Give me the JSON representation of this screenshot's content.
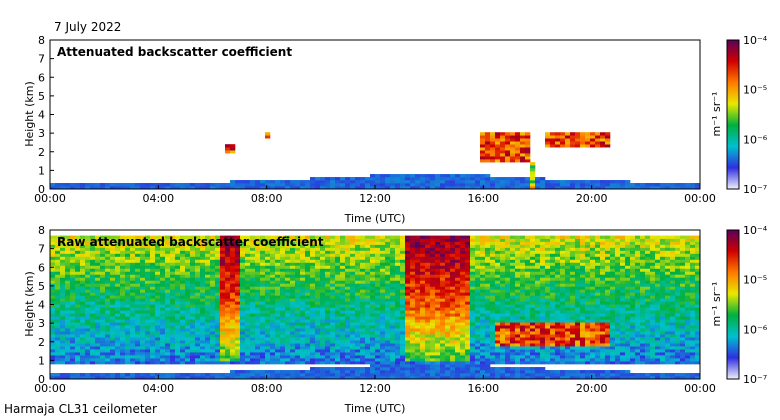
{
  "header": {
    "date": "7 July 2022"
  },
  "footer": {
    "instrument": "Harmaja CL31 ceilometer"
  },
  "colors": {
    "colormap": [
      "#f0f0fb",
      "#2f2fe0",
      "#00c0d0",
      "#00b040",
      "#e8e800",
      "#ff7a00",
      "#d00000",
      "#5a005a"
    ]
  },
  "chart_data": [
    {
      "type": "heatmap",
      "title": "Attenuated backscatter coefficient",
      "xlabel": "Time (UTC)",
      "ylabel": "Height (km)",
      "xlim": [
        "00:00",
        "00:00"
      ],
      "ylim": [
        0,
        8
      ],
      "x_ticks": [
        "00:00",
        "04:00",
        "08:00",
        "12:00",
        "16:00",
        "20:00",
        "00:00"
      ],
      "y_ticks": [
        "0",
        "1",
        "2",
        "3",
        "4",
        "5",
        "6",
        "7",
        "8"
      ],
      "colorbar": {
        "label": "m⁻¹ sr⁻¹",
        "scale": "log",
        "range": [
          1e-07,
          0.0001
        ],
        "ticks": [
          "10⁻⁷",
          "10⁻⁶",
          "10⁻⁵",
          "10⁻⁴"
        ]
      },
      "features": [
        {
          "name": "boundary layer",
          "time_hours": [
            0,
            24
          ],
          "height_km": [
            0,
            0.8
          ]
        },
        {
          "name": "cloud layer",
          "time_hours": [
            6.5,
            6.9
          ],
          "height_km": [
            1.9,
            2.4
          ]
        },
        {
          "name": "cloud layer",
          "time_hours": [
            7.9,
            8.1
          ],
          "height_km": [
            2.8,
            3.0
          ]
        },
        {
          "name": "cloud layer",
          "time_hours": [
            15.9,
            17.8
          ],
          "height_km": [
            1.4,
            3.0
          ]
        },
        {
          "name": "cloud layer",
          "time_hours": [
            18.2,
            20.6
          ],
          "height_km": [
            2.2,
            3.0
          ]
        },
        {
          "name": "precipitation",
          "time_hours": [
            16.0,
            16.1
          ],
          "height_km": [
            0,
            1.0
          ]
        },
        {
          "name": "precipitation",
          "time_hours": [
            17.8,
            17.95
          ],
          "height_km": [
            0,
            1.5
          ]
        }
      ]
    },
    {
      "type": "heatmap",
      "title": "Raw attenuated backscatter coefficient",
      "xlabel": "Time (UTC)",
      "ylabel": "Height (km)",
      "xlim": [
        "00:00",
        "00:00"
      ],
      "ylim": [
        0,
        8
      ],
      "x_ticks": [
        "00:00",
        "04:00",
        "08:00",
        "12:00",
        "16:00",
        "20:00",
        "00:00"
      ],
      "y_ticks": [
        "0",
        "1",
        "2",
        "3",
        "4",
        "5",
        "6",
        "7",
        "8"
      ],
      "colorbar": {
        "label": "m⁻¹ sr⁻¹",
        "scale": "log",
        "range": [
          1e-07,
          0.0001
        ],
        "ticks": [
          "10⁻⁷",
          "10⁻⁶",
          "10⁻⁵",
          "10⁻⁴"
        ]
      },
      "features": [
        {
          "name": "noise",
          "time_hours": [
            0,
            24
          ],
          "height_km": [
            1.0,
            7.7
          ]
        },
        {
          "name": "boundary layer",
          "time_hours": [
            0,
            24
          ],
          "height_km": [
            0,
            0.8
          ]
        },
        {
          "name": "cloud layer",
          "time_hours": [
            16.5,
            20.7
          ],
          "height_km": [
            1.8,
            3.0
          ]
        }
      ]
    }
  ]
}
